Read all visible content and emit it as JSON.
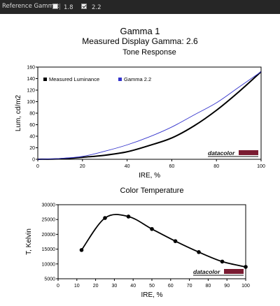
{
  "toolbar": {
    "label": "Reference Gamma:",
    "options": [
      {
        "label": "1.8",
        "checked": false
      },
      {
        "label": "2.2",
        "checked": true
      }
    ]
  },
  "header": {
    "title": "Gamma 1",
    "subtitle": "Measured Display Gamma: 2.6"
  },
  "logo_text": "datacolor",
  "chart_data": [
    {
      "type": "line",
      "title": "Tone Response",
      "xlabel": "IRE, %",
      "ylabel": "Lum, cd/m2",
      "xlim": [
        0,
        100
      ],
      "ylim": [
        0,
        160
      ],
      "xticks": [
        0,
        20,
        40,
        60,
        80,
        100
      ],
      "yticks": [
        0,
        20,
        40,
        60,
        80,
        100,
        120,
        140,
        160
      ],
      "legend": "top-left",
      "series": [
        {
          "name": "Measured Luminance",
          "color": "#000000",
          "x": [
            0,
            10,
            20,
            30,
            40,
            50,
            60,
            70,
            80,
            90,
            100
          ],
          "y": [
            0,
            0.8,
            3.5,
            7,
            13,
            24,
            37,
            58,
            85,
            117,
            152
          ]
        },
        {
          "name": "Gamma 2.2",
          "color": "#3333cc",
          "x": [
            0,
            10,
            20,
            30,
            40,
            50,
            60,
            70,
            80,
            90,
            100
          ],
          "y": [
            0,
            1.5,
            5,
            14,
            25,
            39,
            56,
            77,
            98,
            125,
            152
          ]
        }
      ]
    },
    {
      "type": "line",
      "title": "Color Temperature",
      "xlabel": "IRE, %",
      "ylabel": "T, Kelvin",
      "xlim": [
        0,
        100
      ],
      "ylim": [
        5000,
        30000
      ],
      "xticks": [
        0,
        10,
        20,
        30,
        40,
        50,
        60,
        70,
        80,
        90,
        100
      ],
      "yticks": [
        5000,
        10000,
        15000,
        20000,
        25000,
        30000
      ],
      "series": [
        {
          "color": "#000000",
          "x": [
            12.5,
            25,
            37.5,
            50,
            62.5,
            75,
            87.5,
            100
          ],
          "y": [
            14700,
            25500,
            26000,
            21800,
            17700,
            14000,
            10800,
            9000
          ]
        }
      ]
    }
  ]
}
